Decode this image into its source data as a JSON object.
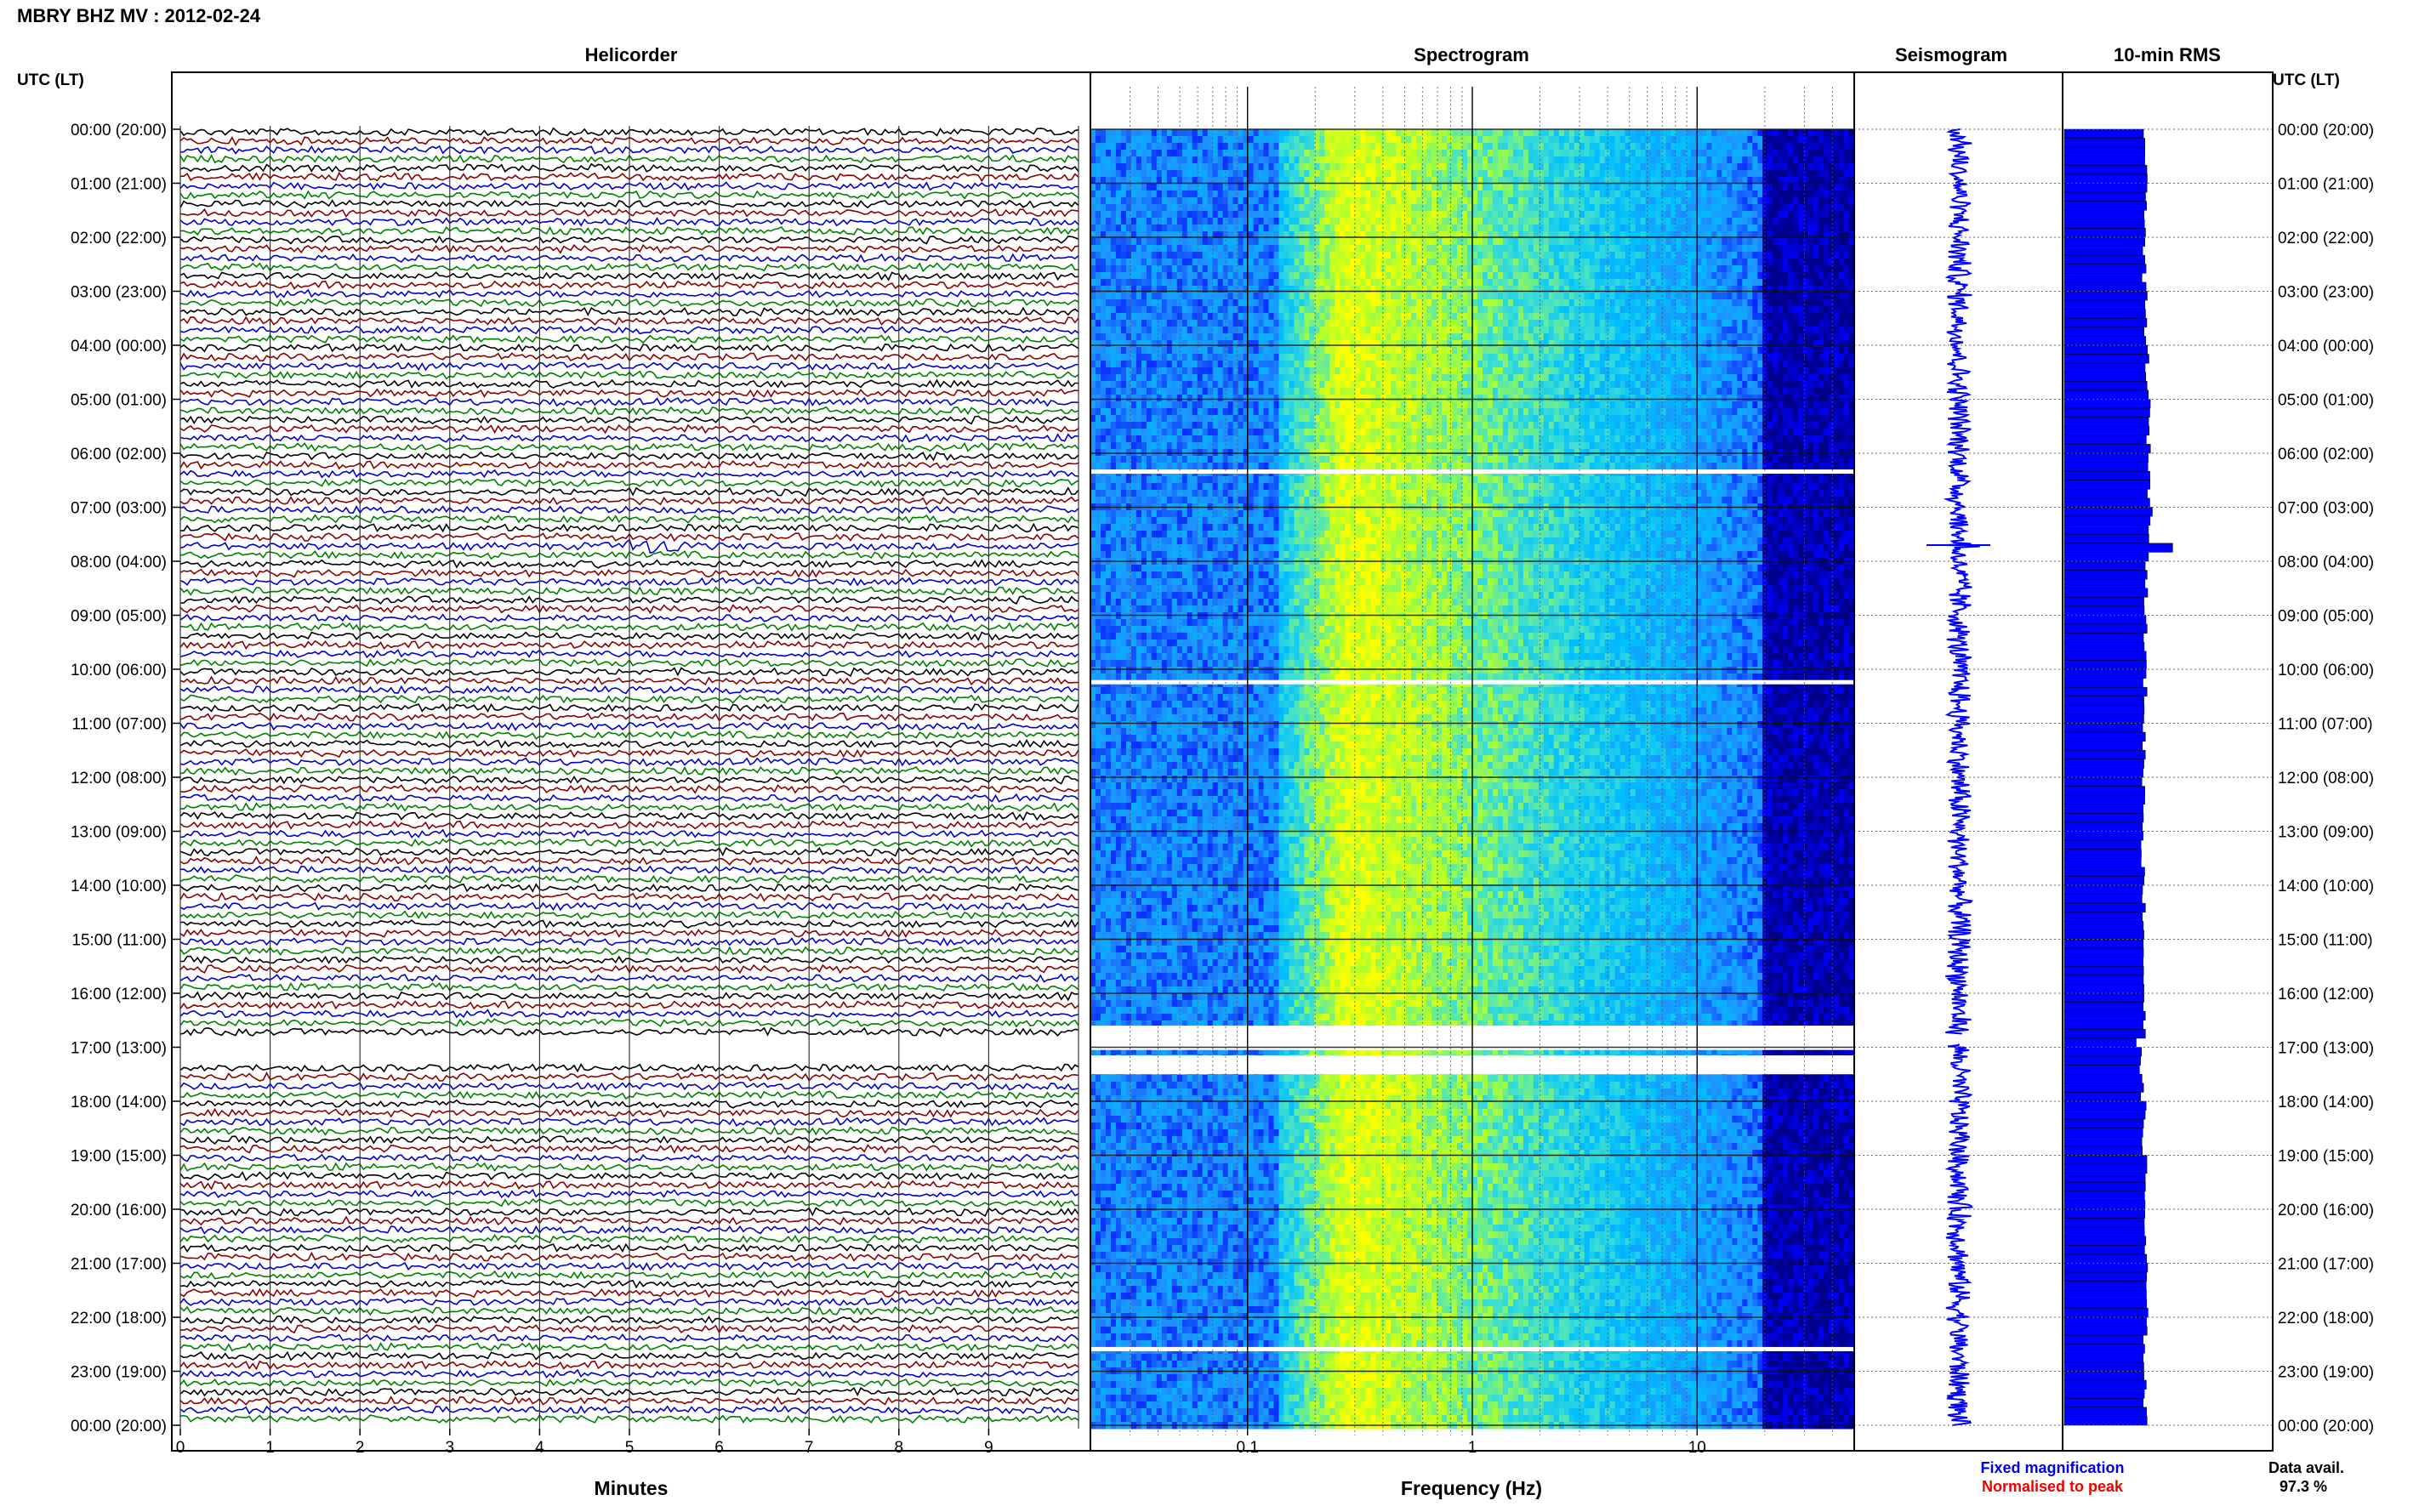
{
  "title": "MBRY BHZ MV : 2012-02-24",
  "panel_titles": {
    "helicorder": "Helicorder",
    "spectrogram": "Spectrogram",
    "seismogram": "Seismogram",
    "rms": "10-min RMS"
  },
  "axis_header_left": "UTC (LT)",
  "axis_header_right": "UTC (LT)",
  "legend": {
    "fixed": "Fixed magnification",
    "normalised": "Normalised to peak",
    "fixed_color": "#0000ee",
    "normalised_color": "#ee0000"
  },
  "data_avail": {
    "label": "Data avail.",
    "value": "97.3 %"
  },
  "chart_data": [
    {
      "type": "line",
      "panel": "helicorder",
      "xlabel": "Minutes",
      "x_ticks": [
        "0",
        "1",
        "2",
        "3",
        "4",
        "5",
        "6",
        "7",
        "8",
        "9"
      ],
      "xlim": [
        0,
        10
      ],
      "trace_interval_minutes": 10,
      "trace_colors": [
        "#000000",
        "#8b0000",
        "#0000cd",
        "#008000"
      ],
      "time_labels_left": [
        "00:00 (20:00)",
        "01:00 (21:00)",
        "02:00 (22:00)",
        "03:00 (23:00)",
        "04:00 (00:00)",
        "05:00 (01:00)",
        "06:00 (02:00)",
        "07:00 (03:00)",
        "08:00 (04:00)",
        "09:00 (05:00)",
        "10:00 (06:00)",
        "11:00 (07:00)",
        "12:00 (08:00)",
        "13:00 (09:00)",
        "14:00 (10:00)",
        "15:00 (11:00)",
        "16:00 (12:00)",
        "17:00 (13:00)",
        "18:00 (14:00)",
        "19:00 (15:00)",
        "20:00 (16:00)",
        "21:00 (17:00)",
        "22:00 (18:00)",
        "23:00 (19:00)",
        "00:00 (20:00)"
      ],
      "events": [
        {
          "time": "07:40",
          "minute": 5.3,
          "label": ""
        }
      ],
      "gap_hours": [
        16.8,
        17.3
      ]
    },
    {
      "type": "heatmap",
      "panel": "spectrogram",
      "xlabel": "Frequency (Hz)",
      "x_scale": "log",
      "xlim": [
        0.02,
        50
      ],
      "x_ticks": [
        "0.1",
        "1",
        "10"
      ],
      "colormap": [
        "#00008b",
        "#0000ff",
        "#1e90ff",
        "#00bfff",
        "#40e0d0",
        "#adff2f",
        "#ffff00"
      ],
      "gap_hours": [
        6.3,
        10.2,
        16.6,
        17.05,
        17.25,
        17.5,
        22.55
      ]
    },
    {
      "type": "line",
      "panel": "seismogram",
      "series_color": "#0000ff",
      "events": [
        {
          "hour": 7.7
        },
        {
          "hour": 10.3
        }
      ]
    },
    {
      "type": "bar",
      "panel": "rms",
      "bar_color": "#0000ff",
      "interval_minutes": 10,
      "rms_hourly": [
        0.73,
        0.74,
        0.72,
        0.73,
        0.75,
        0.76,
        0.77,
        0.78,
        0.74,
        0.73,
        0.73,
        0.72,
        0.72,
        0.71,
        0.72,
        0.72,
        0.72,
        0.7,
        0.72,
        0.73,
        0.73,
        0.74,
        0.73,
        0.73
      ],
      "spikes": [
        {
          "hour": 7.7,
          "value": 0.98
        },
        {
          "hour": 16.8,
          "value": 0.65
        }
      ]
    }
  ]
}
